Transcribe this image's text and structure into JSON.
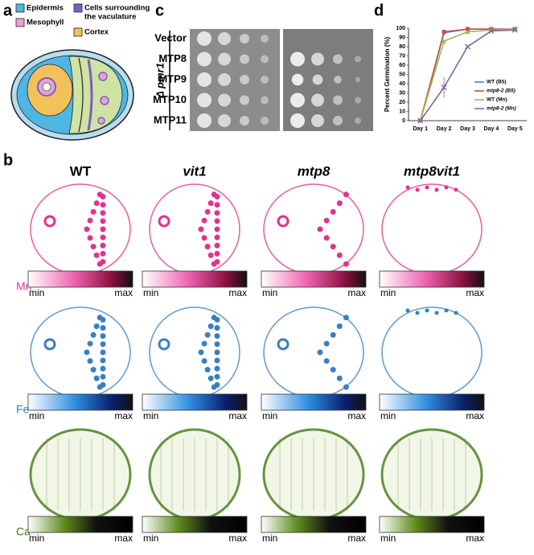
{
  "panel_labels": [
    "a",
    "b",
    "c",
    "d"
  ],
  "panel_a": {
    "legend": [
      {
        "lines": [
          "Epidermis"
        ],
        "color": "#4fb6e3"
      },
      {
        "lines": [
          "Cells surrounding",
          "the vaculature"
        ],
        "color": "#7a5fc0"
      },
      {
        "lines": [
          "Mesophyll"
        ],
        "color": "#e7a3d0"
      },
      {
        "lines": [
          "Cortex"
        ],
        "color": "#f2c15a"
      }
    ]
  },
  "panel_b": {
    "columns": [
      "WT",
      "vit1",
      "mtp8",
      "mtp8vit1"
    ],
    "rows": [
      {
        "element": "Mn",
        "color": "#e0338f",
        "min": "min",
        "max": "max"
      },
      {
        "element": "Fe",
        "color": "#3a7fc1",
        "min": "min",
        "max": "max"
      },
      {
        "element": "Ca",
        "color": "#3f7a12",
        "min": "min",
        "max": "max"
      }
    ]
  },
  "panel_c": {
    "strain": "Δ pmr1",
    "rows": [
      "Vector",
      "MTP8",
      "MTP9",
      "MTP10",
      "MTP11"
    ]
  },
  "chart_data": {
    "type": "line",
    "y_label": "Percent Germination (%)",
    "categories": [
      "Day 1",
      "Day 2",
      "Day 3",
      "Day 4",
      "Day 5"
    ],
    "series": [
      {
        "name": "WT (B5)",
        "color": "#4f81bd",
        "values": [
          0,
          95,
          99,
          99,
          99
        ]
      },
      {
        "name": "mtp8-2 (B5)",
        "color": "#c0504d",
        "values": [
          0,
          96,
          99,
          99,
          99
        ]
      },
      {
        "name": "WT (Mn)",
        "color": "#9bbb59",
        "values": [
          0,
          86,
          96,
          98,
          99
        ]
      },
      {
        "name": "mtp8-2 (Mn)",
        "color": "#8064a2",
        "values": [
          0,
          36,
          80,
          97,
          98
        ],
        "errors": [
          null,
          11,
          null,
          null,
          null
        ]
      }
    ],
    "ylim": [
      0,
      100
    ],
    "yticks": [
      0,
      10,
      20,
      30,
      40,
      50,
      60,
      70,
      80,
      90,
      100
    ],
    "grid": false,
    "legend": "right"
  }
}
